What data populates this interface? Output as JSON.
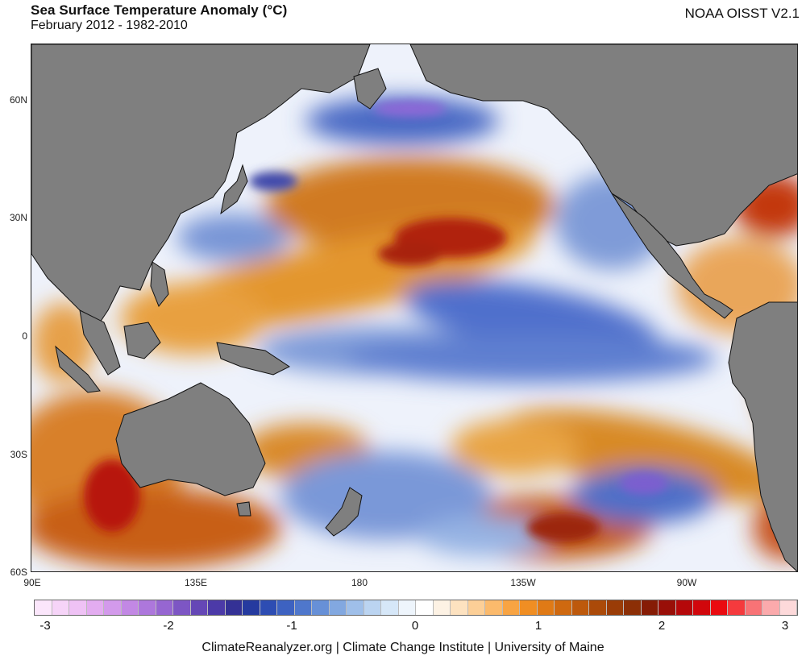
{
  "header": {
    "title": "Sea Surface Temperature Anomaly (°C)",
    "subtitle": "February 2012 - 1982-2010",
    "source": "NOAA OISST V2.1"
  },
  "map": {
    "latitude_labels": [
      "60N",
      "30N",
      "0",
      "30S",
      "60S"
    ],
    "longitude_labels": [
      "90E",
      "135E",
      "180",
      "135W",
      "90W"
    ]
  },
  "colorbar": {
    "tick_labels": [
      "-3",
      "-2",
      "-1",
      "0",
      "1",
      "2",
      "3"
    ],
    "colors": [
      "#fbe6fb",
      "#f6d4f8",
      "#efc2f5",
      "#e3acf0",
      "#d39aeb",
      "#c288e4",
      "#ad77dc",
      "#9666d1",
      "#7d56c4",
      "#6547b6",
      "#4c3aa8",
      "#343195",
      "#253a9f",
      "#2d4db3",
      "#3d62c1",
      "#4f77cc",
      "#6790d7",
      "#82a8e0",
      "#9fbfe9",
      "#bbd4f1",
      "#d6e7f8",
      "#eef5fc",
      "#ffffff",
      "#fdf2e4",
      "#fde2c0",
      "#fccf97",
      "#fbba6c",
      "#f8a443",
      "#f08e23",
      "#e07a16",
      "#cf6910",
      "#bd590c",
      "#ab4a09",
      "#9a3c07",
      "#8c2f06",
      "#861c05",
      "#990f08",
      "#b5080a",
      "#d1070c",
      "#ea0a10",
      "#f53a3d",
      "#f87376",
      "#fbaaac",
      "#fdd9da"
    ],
    "unit": "°C"
  },
  "footer": {
    "credit": "ClimateReanalyzer.org | Climate Change Institute | University of Maine"
  }
}
